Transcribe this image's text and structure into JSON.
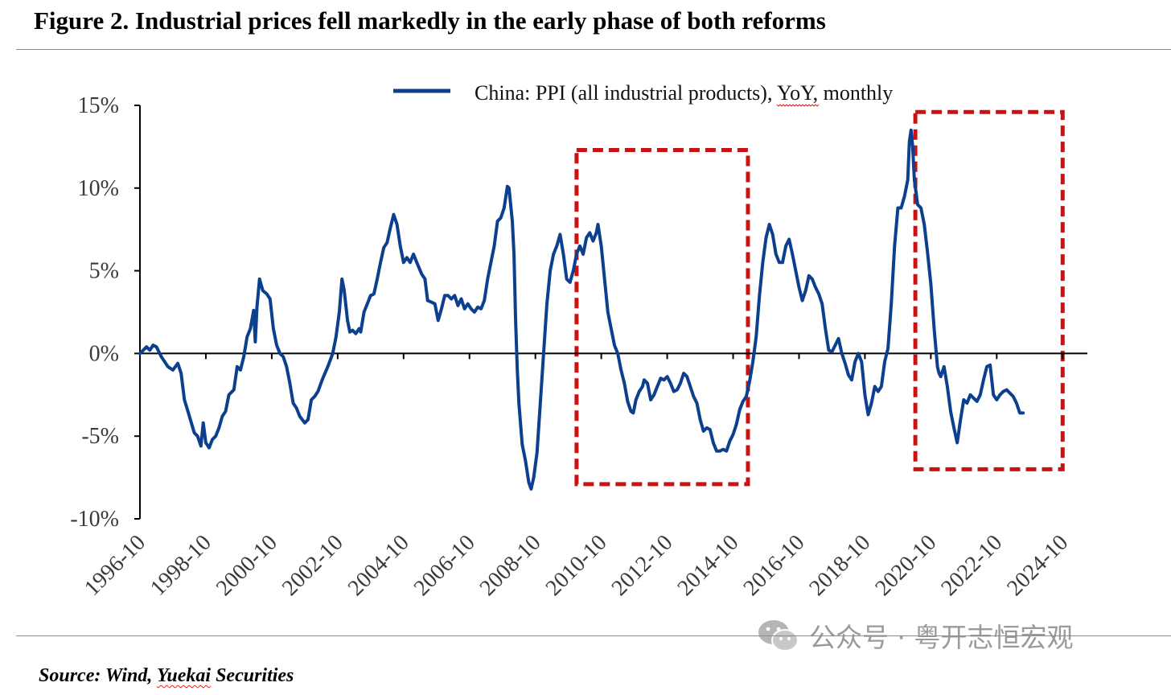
{
  "title": "Figure 2. Industrial prices fell markedly in the early phase of both reforms",
  "source": {
    "prefix": "Source: Wind, ",
    "underlined": "Yuekai",
    "suffix": " Securities"
  },
  "watermark": {
    "icon": "wechat-icon",
    "text": "公众号 · 粤开志恒宏观"
  },
  "colors": {
    "series": "#0d3f8f",
    "highlight": "#cc1111",
    "axis": "#000000",
    "rule": "#8a8a8a"
  },
  "chart_data": {
    "type": "line",
    "title": "",
    "legend": {
      "label_pre": "China: PPI (all industrial products), ",
      "label_underlined": "YoY",
      "label_post": ", monthly",
      "placement": "top-center"
    },
    "ylim": [
      -10,
      15
    ],
    "yticks": [
      15,
      10,
      5,
      0,
      -5,
      -10
    ],
    "ytick_labels": [
      "15%",
      "10%",
      "5%",
      "0%",
      "-5%",
      "-10%"
    ],
    "xrange": [
      1996.75,
      2025.5
    ],
    "xticks": [
      1996.75,
      1998.75,
      2000.75,
      2002.75,
      2004.75,
      2006.75,
      2008.75,
      2010.75,
      2012.75,
      2014.75,
      2016.75,
      2018.75,
      2020.75,
      2022.75,
      2024.75
    ],
    "xtick_labels": [
      "1996-10",
      "1998-10",
      "2000-10",
      "2002-10",
      "2004-10",
      "2006-10",
      "2008-10",
      "2010-10",
      "2012-10",
      "2014-10",
      "2016-10",
      "2018-10",
      "2020-10",
      "2022-10",
      "2024-10"
    ],
    "grid": false,
    "series": [
      {
        "name": "China: PPI (all industrial products), YoY, monthly",
        "points": [
          [
            1996.75,
            0.0
          ],
          [
            1996.85,
            0.2
          ],
          [
            1996.95,
            0.4
          ],
          [
            1997.05,
            0.2
          ],
          [
            1997.15,
            0.5
          ],
          [
            1997.25,
            0.4
          ],
          [
            1997.4,
            -0.2
          ],
          [
            1997.6,
            -0.8
          ],
          [
            1997.75,
            -1.0
          ],
          [
            1997.9,
            -0.6
          ],
          [
            1998.0,
            -1.2
          ],
          [
            1998.1,
            -2.8
          ],
          [
            1998.25,
            -3.8
          ],
          [
            1998.4,
            -4.8
          ],
          [
            1998.5,
            -5.0
          ],
          [
            1998.6,
            -5.6
          ],
          [
            1998.67,
            -4.2
          ],
          [
            1998.75,
            -5.4
          ],
          [
            1998.85,
            -5.7
          ],
          [
            1998.95,
            -5.2
          ],
          [
            1999.05,
            -5.0
          ],
          [
            1999.15,
            -4.5
          ],
          [
            1999.25,
            -3.8
          ],
          [
            1999.35,
            -3.5
          ],
          [
            1999.45,
            -2.5
          ],
          [
            1999.6,
            -2.2
          ],
          [
            1999.7,
            -0.8
          ],
          [
            1999.8,
            -1.0
          ],
          [
            1999.9,
            -0.2
          ],
          [
            2000.0,
            1.0
          ],
          [
            2000.1,
            1.5
          ],
          [
            2000.2,
            2.6
          ],
          [
            2000.25,
            0.7
          ],
          [
            2000.3,
            2.8
          ],
          [
            2000.38,
            4.5
          ],
          [
            2000.48,
            3.8
          ],
          [
            2000.6,
            3.6
          ],
          [
            2000.7,
            3.3
          ],
          [
            2000.8,
            1.5
          ],
          [
            2000.9,
            0.5
          ],
          [
            2001.0,
            0.0
          ],
          [
            2001.1,
            -0.2
          ],
          [
            2001.2,
            -0.8
          ],
          [
            2001.3,
            -1.8
          ],
          [
            2001.4,
            -3.0
          ],
          [
            2001.5,
            -3.3
          ],
          [
            2001.6,
            -3.8
          ],
          [
            2001.75,
            -4.2
          ],
          [
            2001.85,
            -4.0
          ],
          [
            2001.95,
            -2.8
          ],
          [
            2002.05,
            -2.6
          ],
          [
            2002.15,
            -2.3
          ],
          [
            2002.3,
            -1.5
          ],
          [
            2002.45,
            -0.8
          ],
          [
            2002.6,
            0.0
          ],
          [
            2002.7,
            1.0
          ],
          [
            2002.8,
            2.5
          ],
          [
            2002.88,
            4.5
          ],
          [
            2002.95,
            3.8
          ],
          [
            2003.05,
            2.0
          ],
          [
            2003.12,
            1.3
          ],
          [
            2003.2,
            1.4
          ],
          [
            2003.3,
            1.2
          ],
          [
            2003.4,
            1.5
          ],
          [
            2003.45,
            1.3
          ],
          [
            2003.55,
            2.5
          ],
          [
            2003.65,
            3.0
          ],
          [
            2003.75,
            3.5
          ],
          [
            2003.85,
            3.6
          ],
          [
            2003.95,
            4.5
          ],
          [
            2004.05,
            5.5
          ],
          [
            2004.15,
            6.4
          ],
          [
            2004.25,
            6.7
          ],
          [
            2004.35,
            7.6
          ],
          [
            2004.45,
            8.4
          ],
          [
            2004.55,
            7.8
          ],
          [
            2004.65,
            6.5
          ],
          [
            2004.75,
            5.5
          ],
          [
            2004.85,
            5.8
          ],
          [
            2004.95,
            5.5
          ],
          [
            2005.05,
            6.0
          ],
          [
            2005.15,
            5.5
          ],
          [
            2005.3,
            4.8
          ],
          [
            2005.4,
            4.5
          ],
          [
            2005.48,
            3.2
          ],
          [
            2005.6,
            3.1
          ],
          [
            2005.7,
            3.0
          ],
          [
            2005.8,
            2.0
          ],
          [
            2005.9,
            2.7
          ],
          [
            2006.0,
            3.5
          ],
          [
            2006.1,
            3.5
          ],
          [
            2006.2,
            3.3
          ],
          [
            2006.3,
            3.5
          ],
          [
            2006.4,
            2.9
          ],
          [
            2006.5,
            3.3
          ],
          [
            2006.6,
            2.7
          ],
          [
            2006.7,
            3.0
          ],
          [
            2006.8,
            2.7
          ],
          [
            2006.9,
            2.5
          ],
          [
            2007.0,
            2.8
          ],
          [
            2007.1,
            2.7
          ],
          [
            2007.2,
            3.2
          ],
          [
            2007.3,
            4.5
          ],
          [
            2007.4,
            5.5
          ],
          [
            2007.5,
            6.5
          ],
          [
            2007.6,
            8.0
          ],
          [
            2007.7,
            8.2
          ],
          [
            2007.8,
            8.8
          ],
          [
            2007.9,
            10.1
          ],
          [
            2007.95,
            10.0
          ],
          [
            2008.05,
            8.0
          ],
          [
            2008.1,
            6.0
          ],
          [
            2008.15,
            2.0
          ],
          [
            2008.2,
            -1.0
          ],
          [
            2008.25,
            -3.0
          ],
          [
            2008.35,
            -5.5
          ],
          [
            2008.45,
            -6.5
          ],
          [
            2008.55,
            -7.8
          ],
          [
            2008.62,
            -8.2
          ],
          [
            2008.7,
            -7.5
          ],
          [
            2008.8,
            -6.0
          ],
          [
            2008.9,
            -3.0
          ],
          [
            2009.0,
            0.0
          ],
          [
            2009.1,
            3.0
          ],
          [
            2009.2,
            5.0
          ],
          [
            2009.3,
            6.0
          ],
          [
            2009.4,
            6.5
          ],
          [
            2009.5,
            7.2
          ],
          [
            2009.6,
            6.0
          ],
          [
            2009.7,
            4.5
          ],
          [
            2009.8,
            4.3
          ],
          [
            2009.9,
            5.0
          ],
          [
            2010.0,
            6.0
          ],
          [
            2010.1,
            6.5
          ],
          [
            2010.2,
            6.0
          ],
          [
            2010.3,
            7.0
          ],
          [
            2010.4,
            7.3
          ],
          [
            2010.5,
            6.8
          ],
          [
            2010.6,
            7.3
          ],
          [
            2010.65,
            7.8
          ],
          [
            2010.75,
            6.5
          ],
          [
            2010.85,
            4.5
          ],
          [
            2010.95,
            2.5
          ],
          [
            2011.05,
            1.5
          ],
          [
            2011.15,
            0.5
          ],
          [
            2011.25,
            0.0
          ],
          [
            2011.35,
            -1.0
          ],
          [
            2011.45,
            -1.8
          ],
          [
            2011.55,
            -2.9
          ],
          [
            2011.65,
            -3.5
          ],
          [
            2011.72,
            -3.6
          ],
          [
            2011.8,
            -2.8
          ],
          [
            2011.9,
            -2.3
          ],
          [
            2012.0,
            -2.0
          ],
          [
            2012.05,
            -1.6
          ],
          [
            2012.15,
            -1.8
          ],
          [
            2012.25,
            -2.8
          ],
          [
            2012.35,
            -2.5
          ],
          [
            2012.45,
            -2.0
          ],
          [
            2012.55,
            -1.5
          ],
          [
            2012.65,
            -1.6
          ],
          [
            2012.75,
            -1.4
          ],
          [
            2012.85,
            -1.8
          ],
          [
            2012.95,
            -2.3
          ],
          [
            2013.05,
            -2.2
          ],
          [
            2013.15,
            -1.8
          ],
          [
            2013.25,
            -1.2
          ],
          [
            2013.35,
            -1.4
          ],
          [
            2013.45,
            -2.0
          ],
          [
            2013.55,
            -2.6
          ],
          [
            2013.65,
            -3.0
          ],
          [
            2013.75,
            -4.0
          ],
          [
            2013.85,
            -4.7
          ],
          [
            2013.95,
            -4.5
          ],
          [
            2014.05,
            -4.6
          ],
          [
            2014.15,
            -5.4
          ],
          [
            2014.25,
            -5.9
          ],
          [
            2014.35,
            -5.9
          ],
          [
            2014.45,
            -5.8
          ],
          [
            2014.55,
            -5.9
          ],
          [
            2014.65,
            -5.3
          ],
          [
            2014.75,
            -4.9
          ],
          [
            2014.85,
            -4.3
          ],
          [
            2014.95,
            -3.4
          ],
          [
            2015.05,
            -2.9
          ],
          [
            2015.15,
            -2.6
          ],
          [
            2015.25,
            -1.7
          ],
          [
            2015.35,
            -0.5
          ],
          [
            2015.45,
            1.0
          ],
          [
            2015.55,
            3.5
          ],
          [
            2015.65,
            5.5
          ],
          [
            2015.75,
            7.0
          ],
          [
            2015.85,
            7.8
          ],
          [
            2015.95,
            7.2
          ],
          [
            2016.05,
            6.0
          ],
          [
            2016.15,
            5.5
          ],
          [
            2016.25,
            5.5
          ],
          [
            2016.35,
            6.5
          ],
          [
            2016.45,
            6.9
          ],
          [
            2016.55,
            6.0
          ],
          [
            2016.65,
            5.0
          ],
          [
            2016.75,
            4.0
          ],
          [
            2016.85,
            3.2
          ],
          [
            2016.95,
            3.8
          ],
          [
            2017.05,
            4.7
          ],
          [
            2017.15,
            4.5
          ],
          [
            2017.25,
            4.0
          ],
          [
            2017.35,
            3.6
          ],
          [
            2017.45,
            3.0
          ],
          [
            2017.55,
            1.5
          ],
          [
            2017.65,
            0.2
          ],
          [
            2017.75,
            0.1
          ],
          [
            2017.85,
            0.5
          ],
          [
            2017.95,
            0.9
          ],
          [
            2018.05,
            0.0
          ],
          [
            2018.15,
            -0.6
          ],
          [
            2018.25,
            -1.3
          ],
          [
            2018.35,
            -1.6
          ],
          [
            2018.45,
            -0.5
          ],
          [
            2018.55,
            0.0
          ],
          [
            2018.65,
            -0.5
          ],
          [
            2018.75,
            -2.5
          ],
          [
            2018.85,
            -3.7
          ],
          [
            2018.95,
            -3.0
          ],
          [
            2019.05,
            -2.0
          ],
          [
            2019.15,
            -2.3
          ],
          [
            2019.25,
            -2.0
          ],
          [
            2019.35,
            -0.5
          ],
          [
            2019.45,
            0.3
          ],
          [
            2019.55,
            3.0
          ],
          [
            2019.65,
            6.5
          ],
          [
            2019.75,
            8.8
          ],
          [
            2019.85,
            8.8
          ],
          [
            2019.95,
            9.5
          ],
          [
            2020.05,
            10.5
          ],
          [
            2020.1,
            12.8
          ],
          [
            2020.15,
            13.5
          ],
          [
            2020.2,
            12.5
          ],
          [
            2020.25,
            10.5
          ],
          [
            2020.35,
            9.0
          ],
          [
            2020.45,
            8.8
          ],
          [
            2020.55,
            7.8
          ],
          [
            2020.65,
            6.1
          ],
          [
            2020.75,
            4.2
          ],
          [
            2020.85,
            1.5
          ],
          [
            2020.95,
            -0.8
          ],
          [
            2021.0,
            -1.2
          ],
          [
            2021.05,
            -1.4
          ],
          [
            2021.15,
            -0.8
          ],
          [
            2021.25,
            -2.0
          ],
          [
            2021.35,
            -3.5
          ],
          [
            2021.45,
            -4.5
          ],
          [
            2021.55,
            -5.4
          ],
          [
            2021.65,
            -4.0
          ],
          [
            2021.75,
            -2.8
          ],
          [
            2021.85,
            -3.0
          ],
          [
            2021.95,
            -2.5
          ],
          [
            2022.05,
            -2.7
          ],
          [
            2022.15,
            -2.9
          ],
          [
            2022.25,
            -2.5
          ],
          [
            2022.35,
            -1.6
          ],
          [
            2022.45,
            -0.8
          ],
          [
            2022.55,
            -0.7
          ],
          [
            2022.65,
            -2.5
          ],
          [
            2022.75,
            -2.8
          ],
          [
            2022.85,
            -2.5
          ],
          [
            2022.95,
            -2.3
          ],
          [
            2023.05,
            -2.2
          ],
          [
            2023.15,
            -2.4
          ],
          [
            2023.25,
            -2.6
          ],
          [
            2023.35,
            -3.0
          ],
          [
            2023.45,
            -3.6
          ],
          [
            2023.55,
            -3.6
          ]
        ]
      }
    ],
    "highlights": [
      {
        "label": "reform-1",
        "x0": 2010.0,
        "x1": 2015.2,
        "y0": -7.9,
        "y1": 12.3
      },
      {
        "label": "reform-2",
        "x0": 2020.28,
        "x1": 2024.75,
        "y0": -7.0,
        "y1": 14.6
      }
    ]
  }
}
